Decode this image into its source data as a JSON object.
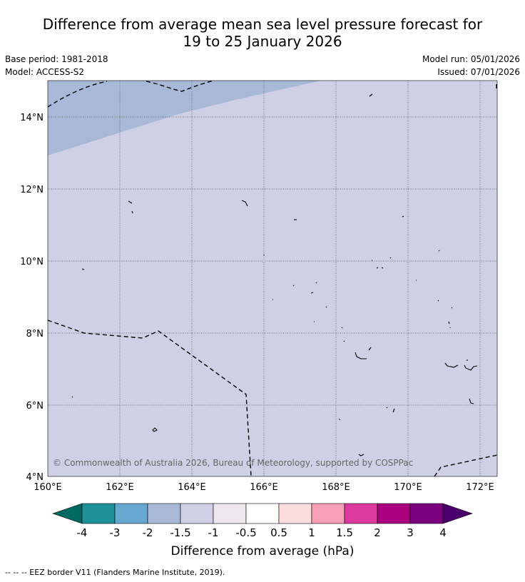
{
  "title": {
    "line1": "Difference from average mean sea level pressure forecast for",
    "line2": "19 to 25 January 2026"
  },
  "meta": {
    "base_period": "Base period: 1981-2018",
    "model": "Model: ACCESS-S2",
    "model_run": "Model run: 05/01/2026",
    "issued": "Issued: 07/01/2026"
  },
  "map": {
    "lon_labels": [
      "160°E",
      "162°E",
      "164°E",
      "166°E",
      "168°E",
      "170°E",
      "172°E"
    ],
    "lat_labels": [
      "4°N",
      "6°N",
      "8°N",
      "10°N",
      "12°N",
      "14°N"
    ],
    "copyright": "© Commonwealth of Australia 2026, Bureau of Meteorology, supported by COSPPac",
    "colors": {
      "band_minus_1": "#cfcfe5",
      "band_minus_1_5": "#a8b9d7"
    }
  },
  "legend": {
    "title": "Difference from average (hPa)",
    "ticks": [
      "-4",
      "-3",
      "-2",
      "-1.5",
      "-1",
      "-0.5",
      "0.5",
      "1",
      "1.5",
      "2",
      "3",
      "4"
    ],
    "colors": [
      "#006a60",
      "#1f9198",
      "#66a8d2",
      "#a8b9d7",
      "#cfcfe5",
      "#eee8ee",
      "#ffffff",
      "#fedcde",
      "#f89fba",
      "#dc3a9f",
      "#aa0080",
      "#7a0080",
      "#4b006e"
    ]
  },
  "footnote": "--  --  -- EEZ border V11 (Flanders Marine Institute, 2019)."
}
